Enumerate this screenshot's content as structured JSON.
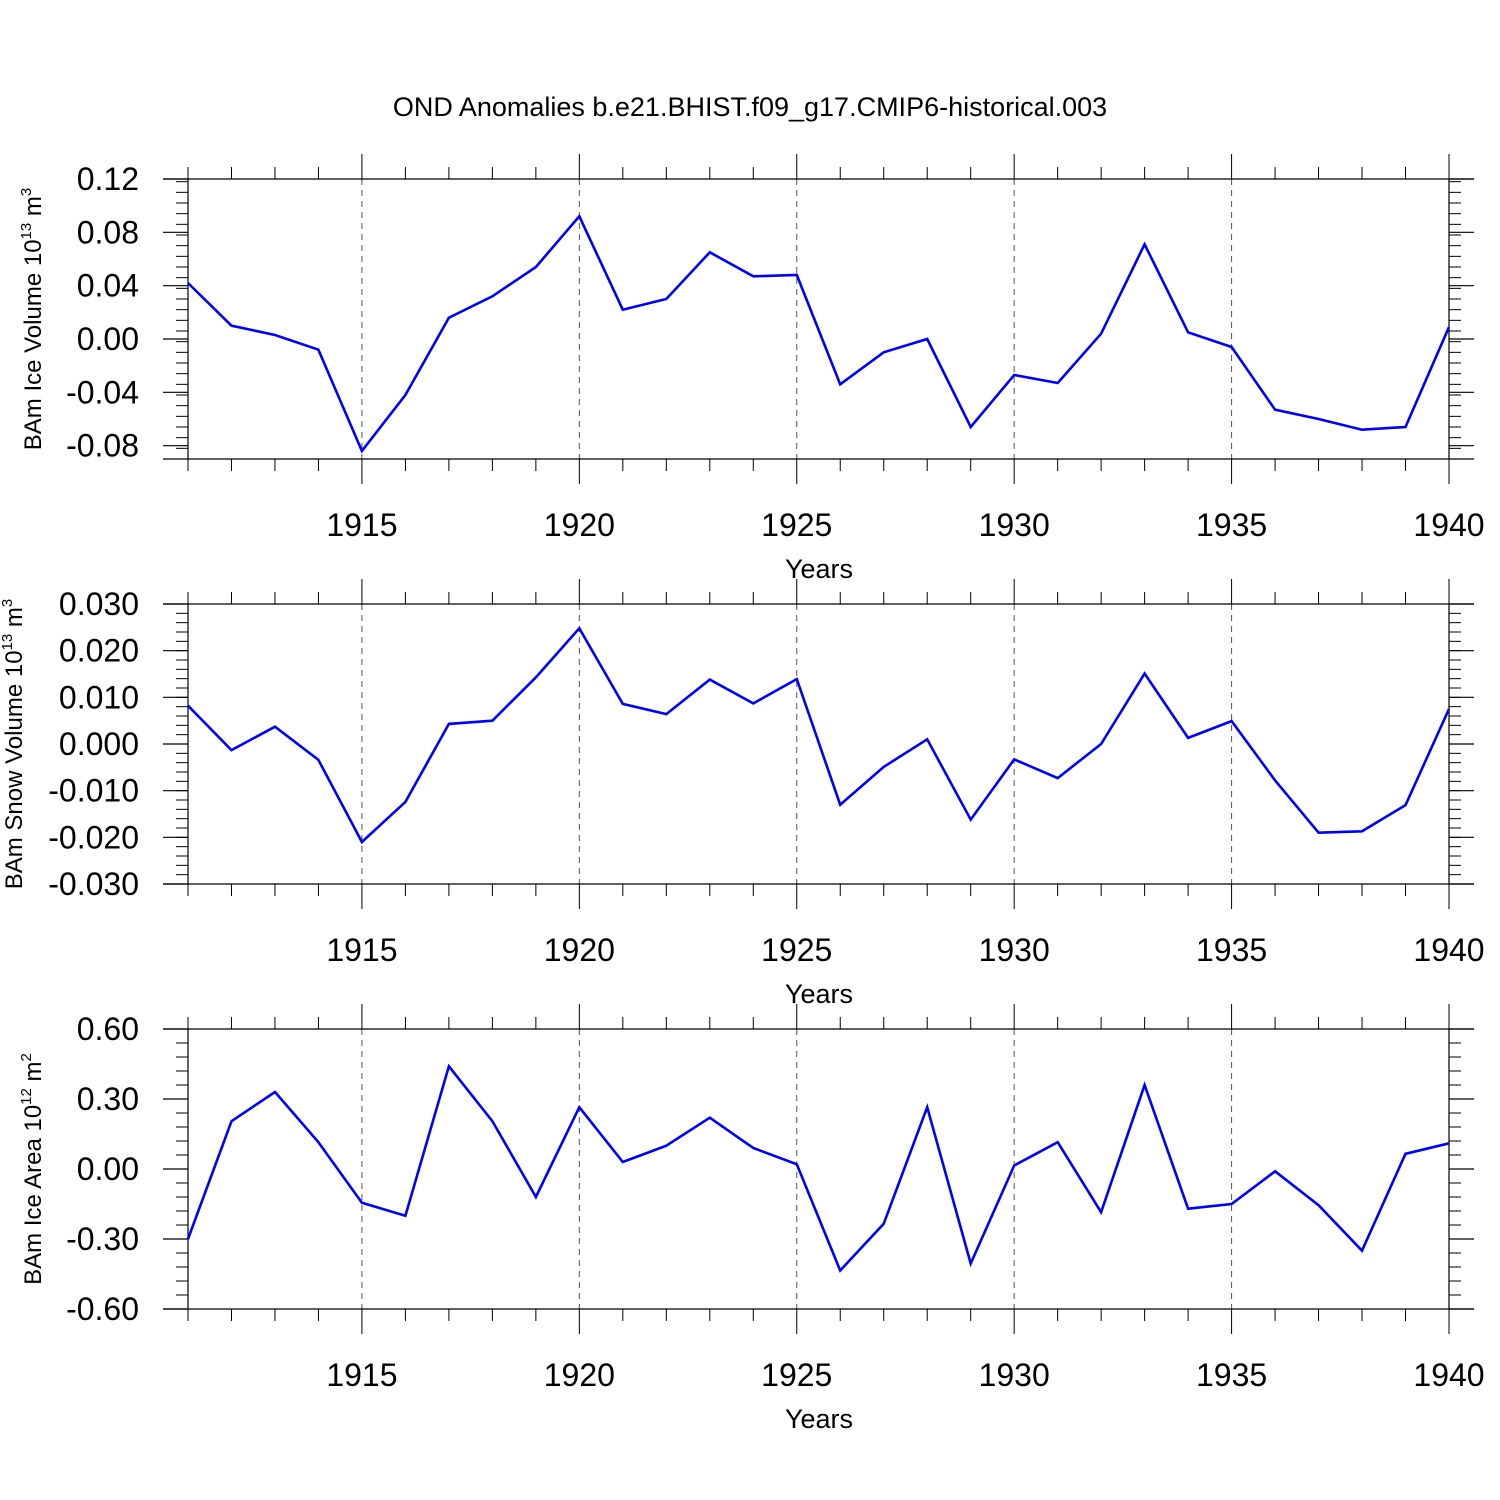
{
  "title": "OND Anomalies b.e21.BHIST.f09_g17.CMIP6-historical.003",
  "line_color": "#0000ff",
  "chart_data": [
    {
      "type": "line",
      "xlabel": "Years",
      "ylabel": {
        "base": "BAm Ice Volume 10",
        "exp": "13",
        "unit": " m",
        "unit_exp": "3"
      },
      "xlim": [
        1911,
        1940
      ],
      "ylim": [
        -0.09,
        0.12
      ],
      "x_ticks": [
        1915,
        1920,
        1925,
        1930,
        1935,
        1940
      ],
      "y_ticks": [
        -0.08,
        -0.04,
        0.0,
        0.04,
        0.08,
        0.12
      ],
      "y_tick_labels": [
        "-0.08",
        "-0.04",
        "0.00",
        "0.04",
        "0.08",
        "0.12"
      ],
      "x": [
        1911,
        1912,
        1913,
        1914,
        1915,
        1916,
        1917,
        1918,
        1919,
        1920,
        1921,
        1922,
        1923,
        1924,
        1925,
        1926,
        1927,
        1928,
        1929,
        1930,
        1931,
        1932,
        1933,
        1934,
        1935,
        1936,
        1937,
        1938,
        1939,
        1940
      ],
      "values": [
        0.042,
        0.01,
        0.003,
        -0.008,
        -0.084,
        -0.042,
        0.016,
        0.032,
        0.054,
        0.092,
        0.022,
        0.03,
        0.065,
        0.047,
        0.048,
        -0.034,
        -0.01,
        0.0,
        -0.066,
        -0.027,
        -0.033,
        0.004,
        0.071,
        0.005,
        -0.006,
        -0.053,
        -0.06,
        -0.068,
        -0.066,
        0.009
      ]
    },
    {
      "type": "line",
      "xlabel": "Years",
      "ylabel": {
        "base": "BAm Snow Volume 10",
        "exp": "13",
        "unit": " m",
        "unit_exp": "3"
      },
      "xlim": [
        1911,
        1940
      ],
      "ylim": [
        -0.03,
        0.03
      ],
      "x_ticks": [
        1915,
        1920,
        1925,
        1930,
        1935,
        1940
      ],
      "y_ticks": [
        -0.03,
        -0.02,
        -0.01,
        0.0,
        0.01,
        0.02,
        0.03
      ],
      "y_tick_labels": [
        "-0.030",
        "-0.020",
        "-0.010",
        "0.000",
        "0.010",
        "0.020",
        "0.030"
      ],
      "x": [
        1911,
        1912,
        1913,
        1914,
        1915,
        1916,
        1917,
        1918,
        1919,
        1920,
        1921,
        1922,
        1923,
        1924,
        1925,
        1926,
        1927,
        1928,
        1929,
        1930,
        1931,
        1932,
        1933,
        1934,
        1935,
        1936,
        1937,
        1938,
        1939,
        1940
      ],
      "values": [
        0.0082,
        -0.0013,
        0.0037,
        -0.0034,
        -0.021,
        -0.0124,
        0.0043,
        0.005,
        0.0143,
        0.0248,
        0.0086,
        0.0064,
        0.0138,
        0.0087,
        0.0139,
        -0.013,
        -0.0049,
        0.001,
        -0.0162,
        -0.0033,
        -0.0073,
        0.0,
        0.0151,
        0.0013,
        0.0049,
        -0.0078,
        -0.019,
        -0.0187,
        -0.0131,
        0.0075
      ]
    },
    {
      "type": "line",
      "xlabel": "Years",
      "ylabel": {
        "base": "BAm Ice Area 10",
        "exp": "12",
        "unit": " m",
        "unit_exp": "2"
      },
      "xlim": [
        1911,
        1940
      ],
      "ylim": [
        -0.6,
        0.6
      ],
      "x_ticks": [
        1915,
        1920,
        1925,
        1930,
        1935,
        1940
      ],
      "y_ticks": [
        -0.6,
        -0.3,
        0.0,
        0.3,
        0.6
      ],
      "y_tick_labels": [
        "-0.60",
        "-0.30",
        "0.00",
        "0.30",
        "0.60"
      ],
      "x": [
        1911,
        1912,
        1913,
        1914,
        1915,
        1916,
        1917,
        1918,
        1919,
        1920,
        1921,
        1922,
        1923,
        1924,
        1925,
        1926,
        1927,
        1928,
        1929,
        1930,
        1931,
        1932,
        1933,
        1934,
        1935,
        1936,
        1937,
        1938,
        1939,
        1940
      ],
      "values": [
        -0.3,
        0.205,
        0.33,
        0.115,
        -0.145,
        -0.2,
        0.44,
        0.205,
        -0.12,
        0.265,
        0.03,
        0.1,
        0.22,
        0.09,
        0.02,
        -0.435,
        -0.235,
        0.265,
        -0.405,
        0.015,
        0.115,
        -0.185,
        0.36,
        -0.17,
        -0.15,
        -0.01,
        -0.155,
        -0.35,
        0.065,
        0.11
      ]
    }
  ]
}
